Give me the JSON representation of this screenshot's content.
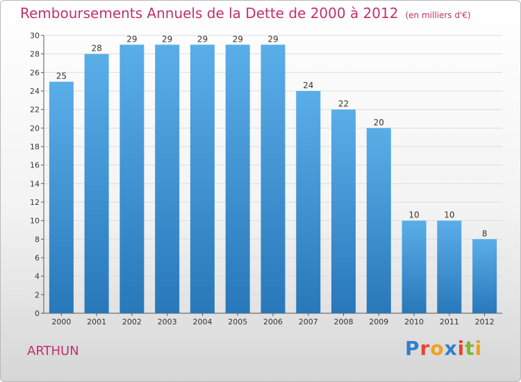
{
  "header": {
    "title": "Remboursements Annuels de la Dette de 2000 à 2012",
    "subtitle": "(en milliers d'€)"
  },
  "footer": {
    "place": "ARTHUN",
    "logo": {
      "text": "Proxiti",
      "letters": [
        {
          "char": "P",
          "color": "#2f7fcf"
        },
        {
          "char": "r",
          "color": "#e8452f"
        },
        {
          "char": "o",
          "color": "#f0a21a"
        },
        {
          "char": "x",
          "color": "#2f7fcf"
        },
        {
          "char": "i",
          "color": "#e8452f"
        },
        {
          "char": "t",
          "color": "#7cb82f"
        },
        {
          "char": "i",
          "color": "#f0a21a"
        }
      ]
    }
  },
  "chart_data": {
    "type": "bar",
    "categories": [
      "2000",
      "2001",
      "2002",
      "2003",
      "2004",
      "2005",
      "2006",
      "2007",
      "2008",
      "2009",
      "2010",
      "2011",
      "2012"
    ],
    "values": [
      25,
      28,
      29,
      29,
      29,
      29,
      29,
      24,
      22,
      20,
      10,
      10,
      8
    ],
    "title": "Remboursements Annuels de la Dette de 2000 à 2012",
    "subtitle": "(en milliers d'€)",
    "xlabel": "",
    "ylabel": "",
    "ylim": [
      0,
      30
    ],
    "yticks": [
      0,
      2,
      4,
      6,
      8,
      10,
      12,
      14,
      16,
      18,
      20,
      22,
      24,
      26,
      28,
      30
    ],
    "grid": true,
    "legend": "none",
    "bar_color_top": "#5aaee8",
    "bar_color_bottom": "#2878ba"
  }
}
